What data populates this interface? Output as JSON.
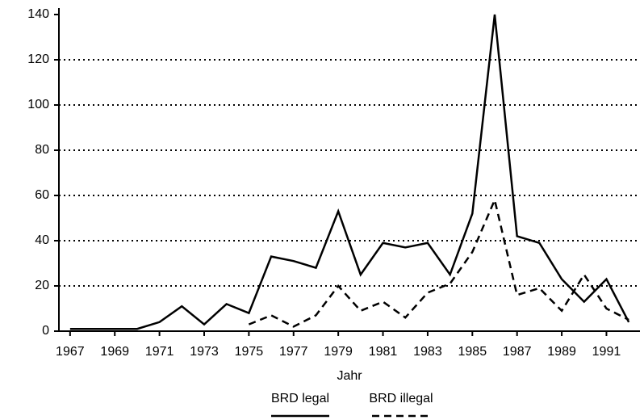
{
  "chart_data": {
    "type": "line",
    "x": [
      1967,
      1968,
      1969,
      1970,
      1971,
      1972,
      1973,
      1974,
      1975,
      1976,
      1977,
      1978,
      1979,
      1980,
      1981,
      1982,
      1983,
      1984,
      1985,
      1986,
      1987,
      1988,
      1989,
      1990,
      1991,
      1992
    ],
    "series": [
      {
        "name": "BRD legal",
        "color": "#000000",
        "dash": "solid",
        "values": [
          1,
          1,
          1,
          1,
          4,
          11,
          3,
          12,
          8,
          33,
          31,
          28,
          53,
          25,
          39,
          37,
          39,
          25,
          52,
          140,
          42,
          39,
          23,
          13,
          23,
          4
        ]
      },
      {
        "name": "BRD illegal",
        "color": "#000000",
        "dash": "dashed",
        "values": [
          null,
          null,
          null,
          null,
          null,
          null,
          null,
          null,
          3,
          7,
          2,
          7,
          20,
          9,
          13,
          6,
          17,
          21,
          35,
          58,
          16,
          19,
          9,
          25,
          10,
          5
        ]
      }
    ],
    "x_label": "Jahr",
    "xlim": [
      1966.5,
      1992.5
    ],
    "xticks": [
      1967,
      1969,
      1971,
      1973,
      1975,
      1977,
      1979,
      1981,
      1983,
      1985,
      1987,
      1989,
      1991
    ],
    "ylim": [
      0,
      140
    ],
    "yticks": [
      0,
      20,
      40,
      60,
      80,
      100,
      120,
      140
    ],
    "grid": true,
    "legend": "bottom"
  }
}
